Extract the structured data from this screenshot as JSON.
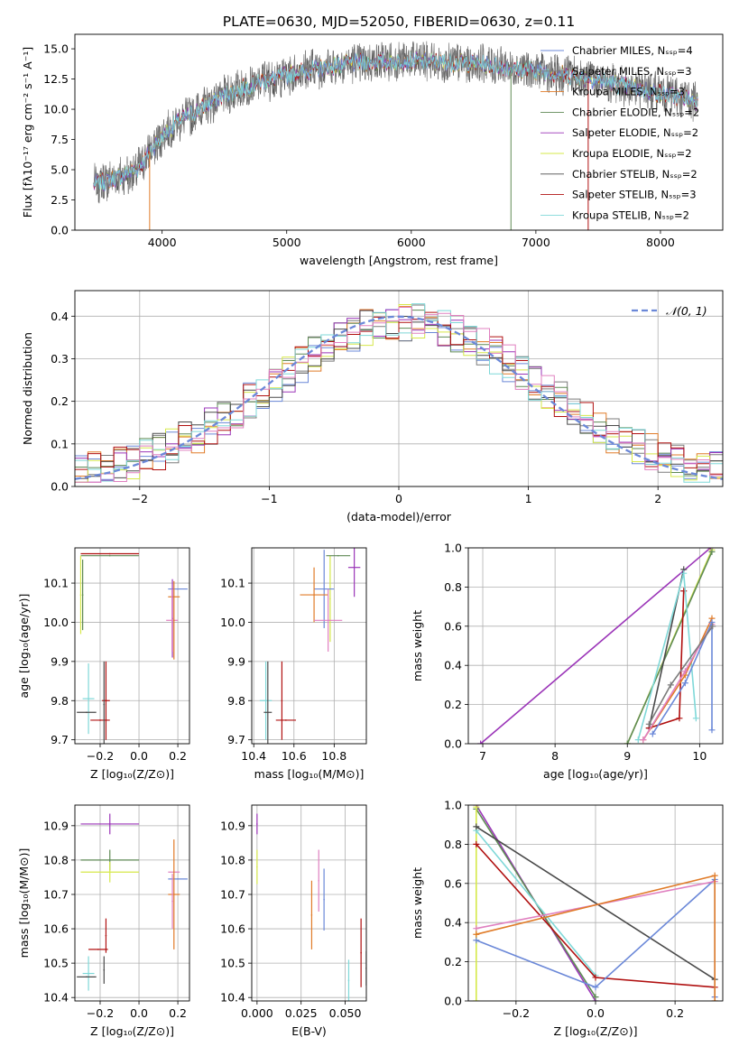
{
  "figure_title": "PLATE=0630, MJD=52050, FIBERID=0630, z=0.11",
  "colors": {
    "chabrier_miles": "#6b88d8",
    "salpeter_miles": "#7b7b7b",
    "kroupa_miles": "#e07b28",
    "chabrier_elodie": "#5f8a55",
    "salpeter_elodie": "#9b35b8",
    "kroupa_elodie": "#d6e84a",
    "chabrier_stelib": "#4a4a4a",
    "salpeter_stelib": "#b01010",
    "kroupa_stelib": "#7fd8d8",
    "pink": "#e080c0",
    "normal_curve": "#6b88d8",
    "grid": "#b0b0b0"
  },
  "chart_data": [
    {
      "id": "spectrum",
      "type": "line",
      "xlabel": "wavelength [Angstrom, rest frame]",
      "ylabel": "Flux [fλ10⁻¹⁷ erg cm⁻² s⁻¹ A⁻¹]",
      "xlim": [
        3300,
        8500
      ],
      "ylim": [
        0,
        16.2
      ],
      "xticks": [
        "4000",
        "5000",
        "6000",
        "7000",
        "8000"
      ],
      "yticks": [
        "0.0",
        "2.5",
        "5.0",
        "7.5",
        "10.0",
        "12.5",
        "15.0"
      ],
      "grid": false,
      "legend_position": "right",
      "legend": [
        "Chabrier MILES, Nₛₛₚ=4",
        "Salpeter MILES, Nₛₛₚ=3",
        "Kroupa MILES, Nₛₛₚ=3",
        "Chabrier ELODIE, Nₛₛₚ=2",
        "Salpeter ELODIE, Nₛₛₚ=2",
        "Kroupa ELODIE, Nₛₛₚ=2",
        "Chabrier STELIB, Nₛₛₚ=2",
        "Salpeter STELIB, Nₛₛₚ=3",
        "Kroupa STELIB, Nₛₛₚ=2"
      ],
      "continuum": {
        "x": [
          3450,
          3600,
          3800,
          3950,
          4100,
          4300,
          4500,
          4800,
          5100,
          5500,
          6000,
          6500,
          7000,
          7500,
          8000,
          8300
        ],
        "y": [
          3.8,
          4.2,
          5.0,
          7.2,
          8.8,
          10.0,
          11.2,
          12.3,
          13.1,
          13.8,
          14.0,
          13.8,
          13.2,
          12.4,
          11.3,
          10.7
        ]
      },
      "noise_amplitude": 0.9,
      "drops_to_zero_at": [
        3900,
        6800,
        7420
      ]
    },
    {
      "id": "residuals",
      "type": "histogram",
      "xlabel": "(data-model)/error",
      "ylabel": "Normed distribution",
      "xlim": [
        -2.5,
        2.5
      ],
      "ylim": [
        0,
        0.46
      ],
      "xticks": [
        "−2",
        "−1",
        "0",
        "1",
        "2"
      ],
      "yticks": [
        "0.0",
        "0.1",
        "0.2",
        "0.3",
        "0.4"
      ],
      "grid": true,
      "legend_position": "top-right",
      "curve_label": "𝒩(0, 1)",
      "bin_width": 0.1
    },
    {
      "id": "age_vs_Z",
      "type": "scatter",
      "xlabel": "Z [log₁₀(Z/Z⊙)]",
      "ylabel": "age  [log₁₀(age/yr)]",
      "xlim": [
        -0.33,
        0.26
      ],
      "ylim": [
        9.69,
        10.19
      ],
      "xticks": [
        "−0.2",
        "0.0",
        "0.2"
      ],
      "yticks": [
        "9.7",
        "9.8",
        "9.9",
        "10.0",
        "10.1"
      ],
      "grid": true,
      "points": [
        {
          "color": "salpeter_stelib",
          "x": -0.15,
          "y": 10.175,
          "xerr": 0.15,
          "yerr": 0.0
        },
        {
          "color": "chabrier_elodie",
          "x": -0.15,
          "y": 10.17,
          "xerr": 0.15,
          "yerr": 0.0
        },
        {
          "color": "kroupa_elodie",
          "x": -0.3,
          "y": 10.07,
          "xerr": 0.0,
          "yerr": 0.1
        },
        {
          "color": "chabrier_elodie",
          "x": -0.29,
          "y": 10.07,
          "xerr": 0.0,
          "yerr": 0.09
        },
        {
          "color": "chabrier_miles",
          "x": 0.2,
          "y": 10.085,
          "xerr": 0.05,
          "yerr": 0.0
        },
        {
          "color": "kroupa_miles",
          "x": 0.18,
          "y": 10.065,
          "xerr": 0.03,
          "yerr": 0.0
        },
        {
          "color": "salpeter_elodie",
          "x": 0.172,
          "y": 10.01,
          "xerr": 0.0,
          "yerr": 0.1
        },
        {
          "color": "pink",
          "x": 0.17,
          "y": 10.005,
          "xerr": 0.03,
          "yerr": 0.08
        },
        {
          "color": "kroupa_miles",
          "x": 0.18,
          "y": 10.005,
          "xerr": 0.0,
          "yerr": 0.1
        },
        {
          "color": "kroupa_stelib",
          "x": -0.26,
          "y": 9.805,
          "xerr": 0.03,
          "yerr": 0.09
        },
        {
          "color": "chabrier_stelib",
          "x": -0.27,
          "y": 9.77,
          "xerr": 0.05,
          "yerr": 0.0
        },
        {
          "color": "salpeter_stelib",
          "x": -0.17,
          "y": 9.8,
          "xerr": 0.02,
          "yerr": 0.1
        },
        {
          "color": "salpeter_stelib",
          "x": -0.2,
          "y": 9.75,
          "xerr": 0.05,
          "yerr": 0.0
        },
        {
          "color": "chabrier_stelib",
          "x": -0.18,
          "y": 9.79,
          "xerr": 0.0,
          "yerr": 0.11
        }
      ]
    },
    {
      "id": "age_vs_mass",
      "type": "scatter",
      "xlabel": "mass [log₁₀(M/M⊙)]",
      "ylabel": "",
      "xlim": [
        10.39,
        10.96
      ],
      "ylim": [
        9.69,
        10.19
      ],
      "xticks": [
        "10.4",
        "10.6",
        "10.8"
      ],
      "yticks": [
        "9.7",
        "9.8",
        "9.9",
        "10.0",
        "10.1"
      ],
      "grid": true,
      "points": [
        {
          "color": "salpeter_elodie",
          "x": 10.9,
          "y": 10.14,
          "xerr": 0.03,
          "yerr": 0.075
        },
        {
          "color": "kroupa_elodie",
          "x": 10.78,
          "y": 10.06,
          "xerr": 0.0,
          "yerr": 0.11
        },
        {
          "color": "chabrier_elodie",
          "x": 10.82,
          "y": 10.17,
          "xerr": 0.06,
          "yerr": 0.0
        },
        {
          "color": "chabrier_miles",
          "x": 10.75,
          "y": 10.085,
          "xerr": 0.05,
          "yerr": 0.1
        },
        {
          "color": "kroupa_miles",
          "x": 10.7,
          "y": 10.07,
          "xerr": 0.07,
          "yerr": 0.07
        },
        {
          "color": "pink",
          "x": 10.77,
          "y": 10.005,
          "xerr": 0.07,
          "yerr": 0.08
        },
        {
          "color": "kroupa_stelib",
          "x": 10.46,
          "y": 9.8,
          "xerr": 0.03,
          "yerr": 0.1
        },
        {
          "color": "chabrier_stelib",
          "x": 10.47,
          "y": 9.77,
          "xerr": 0.02,
          "yerr": 0.13
        },
        {
          "color": "salpeter_stelib",
          "x": 10.54,
          "y": 9.8,
          "xerr": 0.0,
          "yerr": 0.1
        },
        {
          "color": "salpeter_stelib",
          "x": 10.56,
          "y": 9.75,
          "xerr": 0.05,
          "yerr": 0.0
        }
      ]
    },
    {
      "id": "weight_vs_age",
      "type": "line",
      "xlabel": "age  [log₁₀(age/yr)]",
      "ylabel": "mass weight",
      "xlim": [
        6.8,
        10.32
      ],
      "ylim": [
        0,
        1.0
      ],
      "xticks": [
        "7",
        "8",
        "9",
        "10"
      ],
      "yticks": [
        "0.0",
        "0.2",
        "0.4",
        "0.6",
        "0.8",
        "1.0"
      ],
      "grid": true,
      "series": [
        {
          "color": "salpeter_elodie",
          "x": [
            6.97,
            10.15
          ],
          "y": [
            0.0,
            1.0
          ]
        },
        {
          "color": "kroupa_elodie",
          "x": [
            9.0,
            10.17
          ],
          "y": [
            0.0,
            0.99
          ]
        },
        {
          "color": "chabrier_elodie",
          "x": [
            9.0,
            10.17
          ],
          "y": [
            0.0,
            0.98
          ]
        },
        {
          "color": "chabrier_stelib",
          "x": [
            9.3,
            9.78
          ],
          "y": [
            0.08,
            0.89
          ]
        },
        {
          "color": "salpeter_stelib",
          "x": [
            9.3,
            9.72,
            9.78
          ],
          "y": [
            0.08,
            0.13,
            0.78
          ]
        },
        {
          "color": "kroupa_stelib",
          "x": [
            9.15,
            9.78,
            9.95
          ],
          "y": [
            0.02,
            0.87,
            0.13
          ]
        },
        {
          "color": "kroupa_miles",
          "x": [
            9.22,
            9.8,
            10.17
          ],
          "y": [
            0.02,
            0.35,
            0.64
          ]
        },
        {
          "color": "pink",
          "x": [
            9.22,
            9.8,
            10.17
          ],
          "y": [
            0.02,
            0.37,
            0.61
          ]
        },
        {
          "color": "chabrier_miles",
          "x": [
            9.35,
            9.8,
            10.17,
            10.17
          ],
          "y": [
            0.05,
            0.31,
            0.62,
            0.07
          ]
        },
        {
          "color": "salpeter_miles",
          "x": [
            9.3,
            9.6,
            10.18
          ],
          "y": [
            0.1,
            0.3,
            0.6
          ]
        }
      ]
    },
    {
      "id": "mass_vs_Z",
      "type": "scatter",
      "xlabel": "Z [log₁₀(Z/Z⊙)]",
      "ylabel": "mass [log₁₀(M/M⊙)]",
      "xlim": [
        -0.33,
        0.26
      ],
      "ylim": [
        10.39,
        10.96
      ],
      "xticks": [
        "−0.2",
        "0.0",
        "0.2"
      ],
      "yticks": [
        "10.4",
        "10.5",
        "10.6",
        "10.7",
        "10.8",
        "10.9"
      ],
      "grid": true,
      "points": [
        {
          "color": "salpeter_elodie",
          "x": -0.15,
          "y": 10.905,
          "xerr": 0.15,
          "yerr": 0.03
        },
        {
          "color": "chabrier_elodie",
          "x": -0.15,
          "y": 10.8,
          "xerr": 0.15,
          "yerr": 0.03
        },
        {
          "color": "kroupa_elodie",
          "x": -0.15,
          "y": 10.765,
          "xerr": 0.15,
          "yerr": 0.03
        },
        {
          "color": "pink",
          "x": 0.18,
          "y": 10.765,
          "xerr": 0.03,
          "yerr": 0.0
        },
        {
          "color": "chabrier_miles",
          "x": 0.2,
          "y": 10.745,
          "xerr": 0.05,
          "yerr": 0.0
        },
        {
          "color": "kroupa_miles",
          "x": 0.18,
          "y": 10.7,
          "xerr": 0.03,
          "yerr": 0.16
        },
        {
          "color": "pink",
          "x": 0.172,
          "y": 10.68,
          "xerr": 0.0,
          "yerr": 0.08
        },
        {
          "color": "salpeter_stelib",
          "x": -0.17,
          "y": 10.58,
          "xerr": 0.0,
          "yerr": 0.05
        },
        {
          "color": "salpeter_stelib",
          "x": -0.21,
          "y": 10.54,
          "xerr": 0.05,
          "yerr": 0.0
        },
        {
          "color": "kroupa_stelib",
          "x": -0.26,
          "y": 10.47,
          "xerr": 0.03,
          "yerr": 0.05
        },
        {
          "color": "chabrier_stelib",
          "x": -0.27,
          "y": 10.46,
          "xerr": 0.05,
          "yerr": 0.0
        },
        {
          "color": "chabrier_stelib",
          "x": -0.18,
          "y": 10.48,
          "xerr": 0.0,
          "yerr": 0.04
        }
      ]
    },
    {
      "id": "mass_vs_ebv",
      "type": "scatter",
      "xlabel": "E(B-V)",
      "ylabel": "",
      "xlim": [
        -0.003,
        0.062
      ],
      "ylim": [
        10.39,
        10.96
      ],
      "xticks": [
        "0.000",
        "0.025",
        "0.050"
      ],
      "yticks": [
        "10.4",
        "10.5",
        "10.6",
        "10.7",
        "10.8",
        "10.9"
      ],
      "grid": true,
      "points": [
        {
          "color": "salpeter_elodie",
          "x": 0.0,
          "y": 10.905,
          "xerr": 0.0,
          "yerr": 0.03
        },
        {
          "color": "kroupa_elodie",
          "x": 0.0,
          "y": 10.78,
          "xerr": 0.0,
          "yerr": 0.05
        },
        {
          "color": "pink",
          "x": 0.035,
          "y": 10.74,
          "xerr": 0.0,
          "yerr": 0.09
        },
        {
          "color": "chabrier_miles",
          "x": 0.038,
          "y": 10.685,
          "xerr": 0.0,
          "yerr": 0.09
        },
        {
          "color": "kroupa_miles",
          "x": 0.031,
          "y": 10.64,
          "xerr": 0.0,
          "yerr": 0.1
        },
        {
          "color": "salpeter_stelib",
          "x": 0.059,
          "y": 10.53,
          "xerr": 0.0,
          "yerr": 0.1
        },
        {
          "color": "chabrier_stelib",
          "x": 0.062,
          "y": 10.485,
          "xerr": 0.0,
          "yerr": 0.05
        },
        {
          "color": "kroupa_stelib",
          "x": 0.052,
          "y": 10.45,
          "xerr": 0.0,
          "yerr": 0.06
        }
      ]
    },
    {
      "id": "weight_vs_Z",
      "type": "line",
      "xlabel": "Z [log₁₀(Z/Z⊙)]",
      "ylabel": "mass weight",
      "xlim": [
        -0.32,
        0.32
      ],
      "ylim": [
        0,
        1.0
      ],
      "xticks": [
        "−0.2",
        "0.0",
        "0.2"
      ],
      "yticks": [
        "0.0",
        "0.2",
        "0.4",
        "0.6",
        "0.8",
        "1.0"
      ],
      "grid": true,
      "series": [
        {
          "color": "salpeter_elodie",
          "x": [
            -0.3,
            0.0
          ],
          "y": [
            1.0,
            0.0
          ]
        },
        {
          "color": "chabrier_elodie",
          "x": [
            -0.3,
            0.0
          ],
          "y": [
            0.98,
            0.02
          ]
        },
        {
          "color": "kroupa_elodie",
          "x": [
            -0.3,
            -0.3
          ],
          "y": [
            0.0,
            0.99
          ]
        },
        {
          "color": "kroupa_stelib",
          "x": [
            -0.3,
            0.0
          ],
          "y": [
            0.87,
            0.13
          ]
        },
        {
          "color": "chabrier_stelib",
          "x": [
            -0.3,
            0.3
          ],
          "y": [
            0.89,
            0.11
          ]
        },
        {
          "color": "salpeter_stelib",
          "x": [
            -0.3,
            0.0,
            0.3
          ],
          "y": [
            0.8,
            0.12,
            0.07
          ]
        },
        {
          "color": "chabrier_miles",
          "x": [
            -0.3,
            0.0,
            0.3,
            0.3
          ],
          "y": [
            0.31,
            0.07,
            0.62,
            0.02
          ]
        },
        {
          "color": "pink",
          "x": [
            -0.3,
            0.3
          ],
          "y": [
            0.37,
            0.61
          ]
        },
        {
          "color": "kroupa_miles",
          "x": [
            -0.3,
            0.3,
            0.3
          ],
          "y": [
            0.34,
            0.64,
            0.0
          ]
        }
      ]
    }
  ]
}
